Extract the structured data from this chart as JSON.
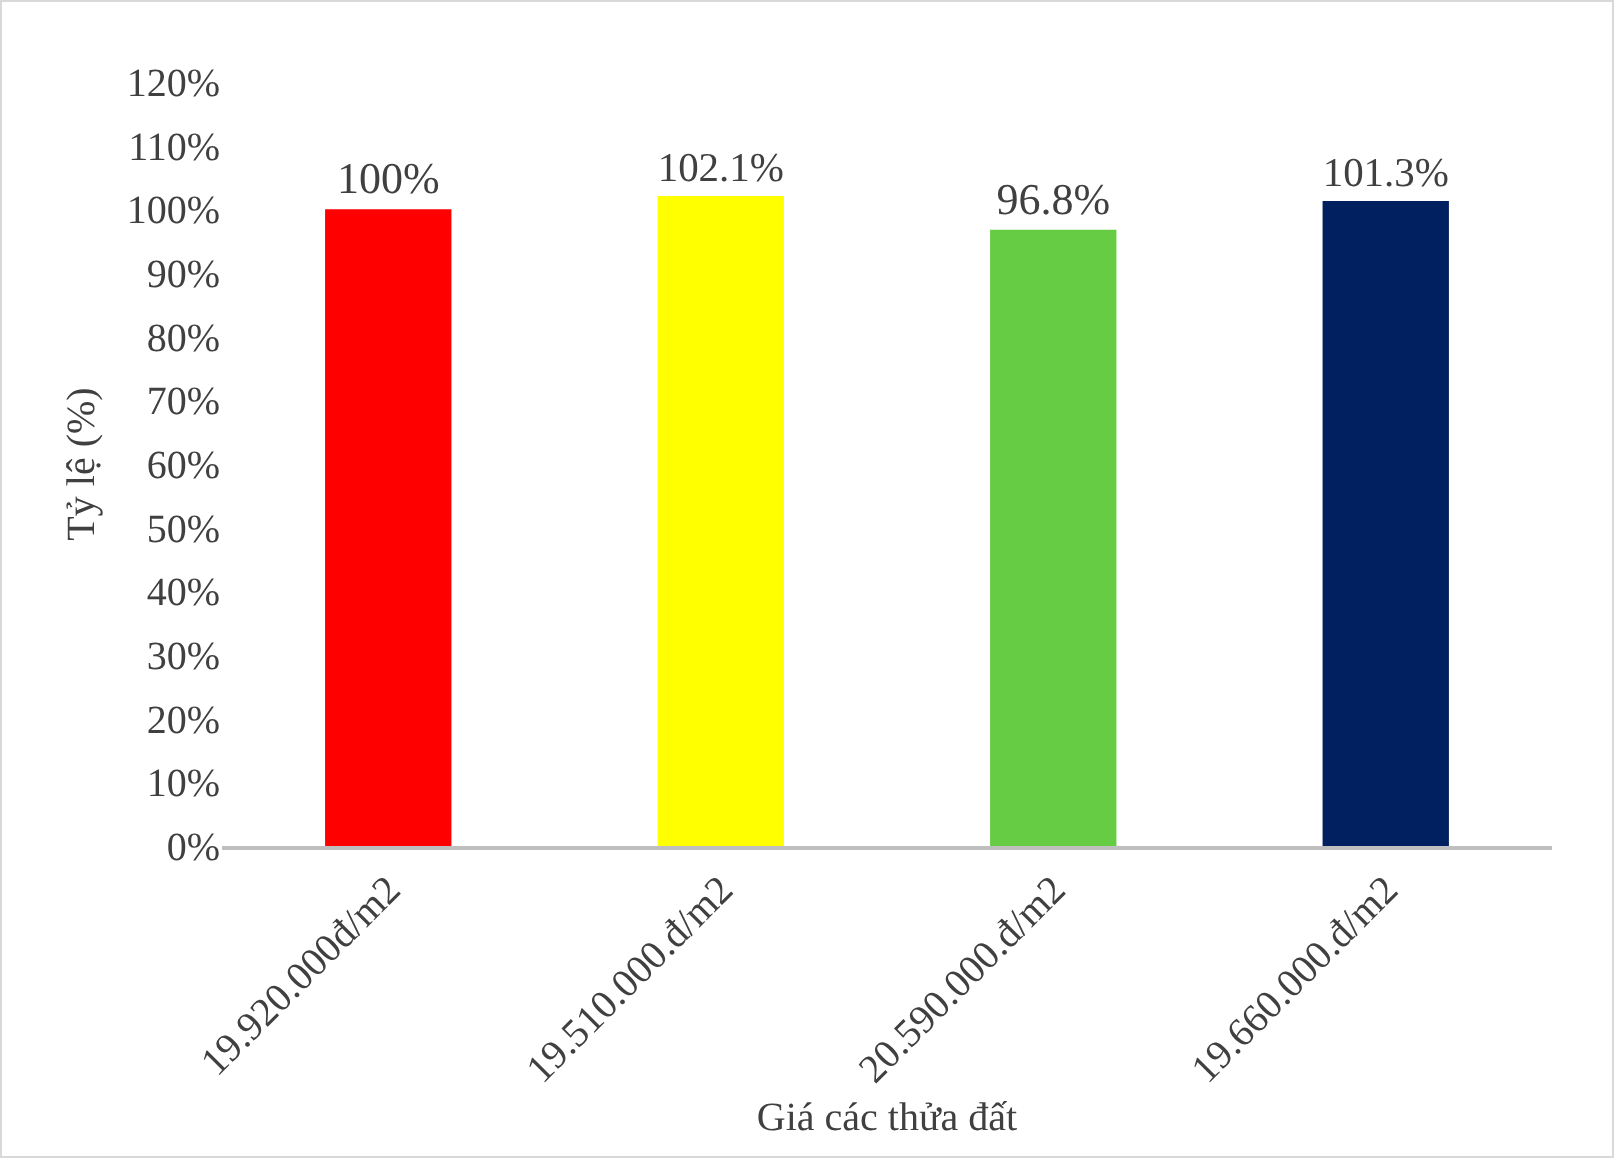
{
  "chart_data": {
    "type": "bar",
    "xlabel": "Giá các thửa đất",
    "ylabel": "Tỷ lệ (%)",
    "categories": [
      "19.920.000đ/m2",
      "19.510.000.đ/m2",
      "20.590.000.đ/m2",
      "19.660.000.đ/m2"
    ],
    "values": [
      100,
      102.1,
      96.8,
      101.3
    ],
    "colors": [
      "#ff0000",
      "#ffff00",
      "#66cc44",
      "#002060"
    ],
    "value_labels": [
      "100%",
      "102.1%",
      "96.8%",
      "101.3%"
    ],
    "ylim": [
      0,
      120
    ],
    "yticks": [
      {
        "value": 0,
        "label": "0%"
      },
      {
        "value": 10,
        "label": "10%"
      },
      {
        "value": 20,
        "label": "20%"
      },
      {
        "value": 30,
        "label": "30%"
      },
      {
        "value": 40,
        "label": "40%"
      },
      {
        "value": 50,
        "label": "50%"
      },
      {
        "value": 60,
        "label": "60%"
      },
      {
        "value": 70,
        "label": "70%"
      },
      {
        "value": 80,
        "label": "80%"
      },
      {
        "value": 90,
        "label": "90%"
      },
      {
        "value": 100,
        "label": "100%"
      },
      {
        "value": 110,
        "label": "110%"
      },
      {
        "value": 120,
        "label": "120%"
      }
    ],
    "grid": false
  }
}
